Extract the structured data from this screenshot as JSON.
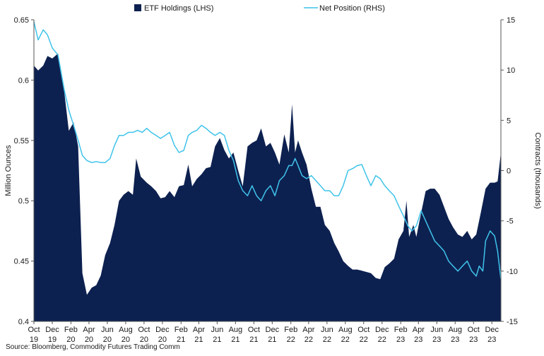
{
  "chart_data": {
    "type": "area",
    "title": "",
    "source": "Source: Bloomberg, Commodity Futures Trading Comm",
    "colors": {
      "etf": "#0d2150",
      "net": "#3fc3ea"
    },
    "legend_position": "top",
    "grid": false,
    "left_axis": {
      "label": "Million Ounces",
      "range": [
        0.4,
        0.65
      ],
      "ticks": [
        "0.4",
        "0.45",
        "0.5",
        "0.55",
        "0.6",
        "0.65"
      ]
    },
    "right_axis": {
      "label": "Contracts (thousands)",
      "range": [
        -15,
        15
      ],
      "ticks": [
        "-15",
        "-10",
        "-5",
        "0",
        "5",
        "10",
        "15"
      ]
    },
    "x_axis": {
      "range": [
        "2019-10-01",
        "2023-12-31"
      ],
      "ticks": [
        {
          "date": "2019-10-01",
          "month": "Oct",
          "year": "19"
        },
        {
          "date": "2019-12-01",
          "month": "Dec",
          "year": "19"
        },
        {
          "date": "2020-02-01",
          "month": "Feb",
          "year": "20"
        },
        {
          "date": "2020-04-01",
          "month": "Apr",
          "year": "20"
        },
        {
          "date": "2020-06-01",
          "month": "Jun",
          "year": "20"
        },
        {
          "date": "2020-08-01",
          "month": "Aug",
          "year": "20"
        },
        {
          "date": "2020-10-01",
          "month": "Oct",
          "year": "20"
        },
        {
          "date": "2020-12-01",
          "month": "Dec",
          "year": "20"
        },
        {
          "date": "2021-02-01",
          "month": "Feb",
          "year": "21"
        },
        {
          "date": "2021-04-01",
          "month": "Apr",
          "year": "21"
        },
        {
          "date": "2021-06-01",
          "month": "Jun",
          "year": "21"
        },
        {
          "date": "2021-08-01",
          "month": "Aug",
          "year": "21"
        },
        {
          "date": "2021-10-01",
          "month": "Oct",
          "year": "21"
        },
        {
          "date": "2021-12-01",
          "month": "Dec",
          "year": "21"
        },
        {
          "date": "2022-02-01",
          "month": "Feb",
          "year": "22"
        },
        {
          "date": "2022-04-01",
          "month": "Apr",
          "year": "22"
        },
        {
          "date": "2022-06-01",
          "month": "Jun",
          "year": "22"
        },
        {
          "date": "2022-08-01",
          "month": "Aug",
          "year": "22"
        },
        {
          "date": "2022-10-01",
          "month": "Oct",
          "year": "22"
        },
        {
          "date": "2022-12-01",
          "month": "Dec",
          "year": "22"
        },
        {
          "date": "2023-02-01",
          "month": "Feb",
          "year": "23"
        },
        {
          "date": "2023-04-01",
          "month": "Apr",
          "year": "23"
        },
        {
          "date": "2023-06-01",
          "month": "Jun",
          "year": "23"
        },
        {
          "date": "2023-08-01",
          "month": "Aug",
          "year": "23"
        },
        {
          "date": "2023-10-01",
          "month": "Oct",
          "year": "23"
        },
        {
          "date": "2023-12-01",
          "month": "Dec",
          "year": "23"
        }
      ]
    },
    "series": [
      {
        "name": "ETF Holdings (LHS)",
        "type": "area",
        "axis": "left",
        "points": [
          [
            "2019-10-01",
            0.612
          ],
          [
            "2019-10-15",
            0.608
          ],
          [
            "2019-11-01",
            0.612
          ],
          [
            "2019-11-15",
            0.62
          ],
          [
            "2019-12-01",
            0.618
          ],
          [
            "2019-12-20",
            0.622
          ],
          [
            "2020-01-10",
            0.59
          ],
          [
            "2020-01-25",
            0.558
          ],
          [
            "2020-02-10",
            0.565
          ],
          [
            "2020-02-25",
            0.545
          ],
          [
            "2020-03-10",
            0.44
          ],
          [
            "2020-03-25",
            0.422
          ],
          [
            "2020-04-10",
            0.428
          ],
          [
            "2020-04-25",
            0.43
          ],
          [
            "2020-05-10",
            0.438
          ],
          [
            "2020-05-25",
            0.455
          ],
          [
            "2020-06-10",
            0.465
          ],
          [
            "2020-06-25",
            0.48
          ],
          [
            "2020-07-10",
            0.5
          ],
          [
            "2020-07-25",
            0.505
          ],
          [
            "2020-08-10",
            0.508
          ],
          [
            "2020-08-25",
            0.505
          ],
          [
            "2020-09-05",
            0.535
          ],
          [
            "2020-09-20",
            0.52
          ],
          [
            "2020-10-10",
            0.515
          ],
          [
            "2020-10-25",
            0.512
          ],
          [
            "2020-11-10",
            0.508
          ],
          [
            "2020-11-25",
            0.502
          ],
          [
            "2020-12-10",
            0.503
          ],
          [
            "2020-12-25",
            0.508
          ],
          [
            "2021-01-10",
            0.503
          ],
          [
            "2021-01-25",
            0.512
          ],
          [
            "2021-02-10",
            0.513
          ],
          [
            "2021-02-25",
            0.53
          ],
          [
            "2021-03-10",
            0.512
          ],
          [
            "2021-03-25",
            0.518
          ],
          [
            "2021-04-10",
            0.522
          ],
          [
            "2021-04-25",
            0.527
          ],
          [
            "2021-05-10",
            0.528
          ],
          [
            "2021-05-25",
            0.545
          ],
          [
            "2021-06-10",
            0.552
          ],
          [
            "2021-06-25",
            0.542
          ],
          [
            "2021-07-10",
            0.535
          ],
          [
            "2021-07-25",
            0.54
          ],
          [
            "2021-08-10",
            0.525
          ],
          [
            "2021-08-25",
            0.512
          ],
          [
            "2021-09-10",
            0.545
          ],
          [
            "2021-09-25",
            0.548
          ],
          [
            "2021-10-10",
            0.55
          ],
          [
            "2021-10-25",
            0.56
          ],
          [
            "2021-11-10",
            0.545
          ],
          [
            "2021-11-25",
            0.548
          ],
          [
            "2021-12-10",
            0.54
          ],
          [
            "2021-12-25",
            0.53
          ],
          [
            "2022-01-10",
            0.555
          ],
          [
            "2022-01-25",
            0.54
          ],
          [
            "2022-02-05",
            0.58
          ],
          [
            "2022-02-15",
            0.54
          ],
          [
            "2022-02-25",
            0.55
          ],
          [
            "2022-03-10",
            0.54
          ],
          [
            "2022-03-25",
            0.53
          ],
          [
            "2022-04-10",
            0.51
          ],
          [
            "2022-04-25",
            0.495
          ],
          [
            "2022-05-10",
            0.495
          ],
          [
            "2022-05-25",
            0.48
          ],
          [
            "2022-06-10",
            0.475
          ],
          [
            "2022-06-25",
            0.465
          ],
          [
            "2022-07-10",
            0.458
          ],
          [
            "2022-07-25",
            0.45
          ],
          [
            "2022-08-10",
            0.446
          ],
          [
            "2022-08-25",
            0.443
          ],
          [
            "2022-09-10",
            0.443
          ],
          [
            "2022-09-25",
            0.442
          ],
          [
            "2022-10-10",
            0.441
          ],
          [
            "2022-10-25",
            0.44
          ],
          [
            "2022-11-10",
            0.436
          ],
          [
            "2022-11-25",
            0.435
          ],
          [
            "2022-12-10",
            0.445
          ],
          [
            "2022-12-25",
            0.448
          ],
          [
            "2023-01-10",
            0.452
          ],
          [
            "2023-01-25",
            0.468
          ],
          [
            "2023-02-10",
            0.475
          ],
          [
            "2023-02-20",
            0.5
          ],
          [
            "2023-03-01",
            0.47
          ],
          [
            "2023-03-15",
            0.48
          ],
          [
            "2023-03-25",
            0.47
          ],
          [
            "2023-04-10",
            0.49
          ],
          [
            "2023-04-25",
            0.508
          ],
          [
            "2023-05-10",
            0.51
          ],
          [
            "2023-05-25",
            0.51
          ],
          [
            "2023-06-10",
            0.505
          ],
          [
            "2023-06-25",
            0.495
          ],
          [
            "2023-07-10",
            0.485
          ],
          [
            "2023-07-25",
            0.478
          ],
          [
            "2023-08-10",
            0.472
          ],
          [
            "2023-08-25",
            0.47
          ],
          [
            "2023-09-10",
            0.475
          ],
          [
            "2023-09-25",
            0.468
          ],
          [
            "2023-10-10",
            0.472
          ],
          [
            "2023-10-25",
            0.49
          ],
          [
            "2023-11-10",
            0.51
          ],
          [
            "2023-11-25",
            0.515
          ],
          [
            "2023-12-10",
            0.515
          ],
          [
            "2023-12-20",
            0.516
          ],
          [
            "2023-12-31",
            0.54
          ]
        ]
      },
      {
        "name": "Net Position (RHS)",
        "type": "line",
        "axis": "right",
        "points": [
          [
            "2019-10-01",
            14.8
          ],
          [
            "2019-10-15",
            13.0
          ],
          [
            "2019-11-01",
            14.0
          ],
          [
            "2019-11-15",
            13.5
          ],
          [
            "2019-12-01",
            12.2
          ],
          [
            "2019-12-20",
            11.5
          ],
          [
            "2020-01-10",
            8.0
          ],
          [
            "2020-01-25",
            6.0
          ],
          [
            "2020-02-10",
            4.5
          ],
          [
            "2020-02-25",
            3.0
          ],
          [
            "2020-03-10",
            1.5
          ],
          [
            "2020-03-25",
            1.0
          ],
          [
            "2020-04-10",
            0.8
          ],
          [
            "2020-04-25",
            0.9
          ],
          [
            "2020-05-10",
            0.8
          ],
          [
            "2020-05-25",
            0.8
          ],
          [
            "2020-06-10",
            1.2
          ],
          [
            "2020-06-25",
            2.5
          ],
          [
            "2020-07-10",
            3.5
          ],
          [
            "2020-07-25",
            3.5
          ],
          [
            "2020-08-10",
            3.8
          ],
          [
            "2020-08-25",
            3.8
          ],
          [
            "2020-09-10",
            4.0
          ],
          [
            "2020-09-25",
            3.8
          ],
          [
            "2020-10-10",
            4.2
          ],
          [
            "2020-10-25",
            3.8
          ],
          [
            "2020-11-10",
            3.5
          ],
          [
            "2020-11-25",
            3.2
          ],
          [
            "2020-12-10",
            3.5
          ],
          [
            "2020-12-25",
            3.8
          ],
          [
            "2021-01-10",
            2.5
          ],
          [
            "2021-01-25",
            1.8
          ],
          [
            "2021-02-10",
            2.0
          ],
          [
            "2021-02-25",
            3.5
          ],
          [
            "2021-03-10",
            3.8
          ],
          [
            "2021-03-25",
            4.0
          ],
          [
            "2021-04-10",
            4.5
          ],
          [
            "2021-04-25",
            4.2
          ],
          [
            "2021-05-10",
            3.8
          ],
          [
            "2021-05-25",
            3.5
          ],
          [
            "2021-06-10",
            3.8
          ],
          [
            "2021-06-25",
            3.5
          ],
          [
            "2021-07-10",
            2.0
          ],
          [
            "2021-07-25",
            1.0
          ],
          [
            "2021-08-10",
            -1.0
          ],
          [
            "2021-08-25",
            -2.0
          ],
          [
            "2021-09-10",
            -2.5
          ],
          [
            "2021-09-25",
            -1.5
          ],
          [
            "2021-10-10",
            -2.5
          ],
          [
            "2021-10-25",
            -3.0
          ],
          [
            "2021-11-10",
            -2.0
          ],
          [
            "2021-11-25",
            -1.5
          ],
          [
            "2021-12-10",
            -2.5
          ],
          [
            "2021-12-25",
            -1.0
          ],
          [
            "2022-01-10",
            -0.5
          ],
          [
            "2022-01-25",
            0.5
          ],
          [
            "2022-02-05",
            0.5
          ],
          [
            "2022-02-15",
            1.2
          ],
          [
            "2022-02-25",
            0.5
          ],
          [
            "2022-03-10",
            -0.5
          ],
          [
            "2022-03-25",
            -0.8
          ],
          [
            "2022-04-10",
            -0.5
          ],
          [
            "2022-04-25",
            -1.0
          ],
          [
            "2022-05-10",
            -1.5
          ],
          [
            "2022-05-25",
            -2.0
          ],
          [
            "2022-06-10",
            -2.0
          ],
          [
            "2022-06-25",
            -2.5
          ],
          [
            "2022-07-10",
            -2.5
          ],
          [
            "2022-07-25",
            -1.5
          ],
          [
            "2022-08-10",
            0.0
          ],
          [
            "2022-08-25",
            0.2
          ],
          [
            "2022-09-10",
            0.5
          ],
          [
            "2022-09-25",
            0.6
          ],
          [
            "2022-10-10",
            -0.5
          ],
          [
            "2022-10-25",
            -1.5
          ],
          [
            "2022-11-10",
            -0.5
          ],
          [
            "2022-11-25",
            -0.8
          ],
          [
            "2022-12-10",
            -1.5
          ],
          [
            "2022-12-25",
            -2.0
          ],
          [
            "2023-01-10",
            -2.5
          ],
          [
            "2023-01-25",
            -3.5
          ],
          [
            "2023-02-10",
            -4.5
          ],
          [
            "2023-02-25",
            -5.5
          ],
          [
            "2023-03-10",
            -6.0
          ],
          [
            "2023-03-25",
            -5.5
          ],
          [
            "2023-04-10",
            -4.0
          ],
          [
            "2023-04-25",
            -5.0
          ],
          [
            "2023-05-10",
            -6.0
          ],
          [
            "2023-05-25",
            -7.0
          ],
          [
            "2023-06-10",
            -7.5
          ],
          [
            "2023-06-25",
            -8.0
          ],
          [
            "2023-07-10",
            -9.0
          ],
          [
            "2023-07-25",
            -9.5
          ],
          [
            "2023-08-10",
            -10.0
          ],
          [
            "2023-08-25",
            -9.5
          ],
          [
            "2023-09-10",
            -9.0
          ],
          [
            "2023-09-25",
            -10.0
          ],
          [
            "2023-10-10",
            -10.5
          ],
          [
            "2023-10-20",
            -9.5
          ],
          [
            "2023-11-01",
            -10.0
          ],
          [
            "2023-11-10",
            -7.0
          ],
          [
            "2023-11-25",
            -6.0
          ],
          [
            "2023-12-10",
            -6.5
          ],
          [
            "2023-12-20",
            -8.0
          ],
          [
            "2023-12-31",
            -10.8
          ]
        ]
      }
    ]
  }
}
